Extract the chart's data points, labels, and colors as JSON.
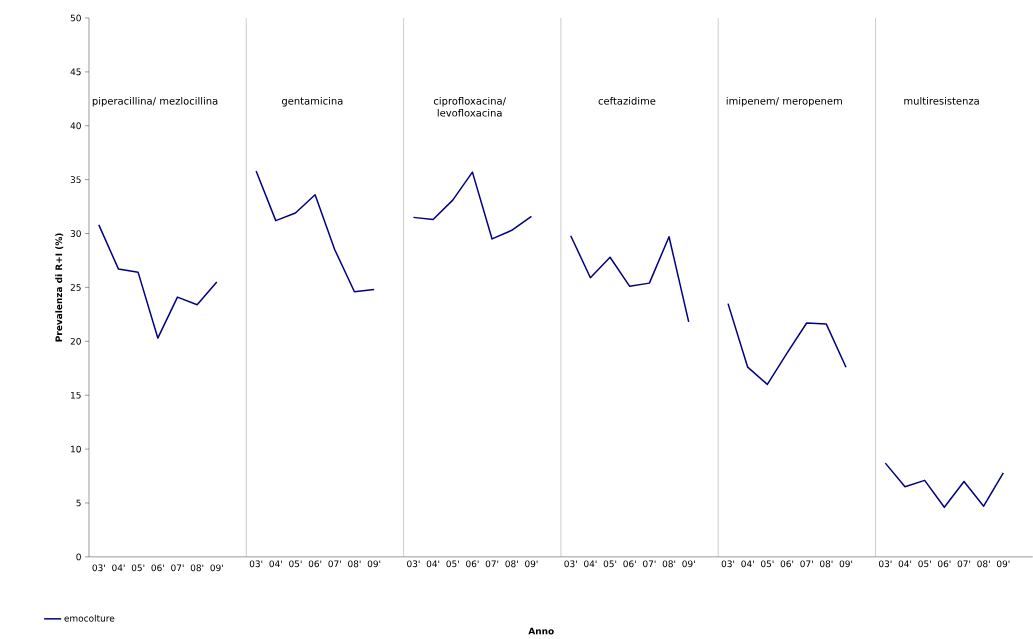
{
  "chart_data": [
    {
      "type": "line",
      "title": "piperacillina/ mezlocillina",
      "ylabel": "Prevalenza di R+I (%)",
      "categories": [
        "03'",
        "04'",
        "05'",
        "06'",
        "07'",
        "08'",
        "09'"
      ],
      "series": [
        {
          "name": "emocolture",
          "color": "#000080",
          "values": [
            30.8,
            26.7,
            26.4,
            20.3,
            24.1,
            23.4,
            25.5
          ]
        }
      ],
      "ylim": [
        0,
        50
      ],
      "yticks": [
        0,
        5,
        10,
        15,
        20,
        25,
        30,
        35,
        40,
        45,
        50
      ],
      "legend": "bottom left"
    },
    {
      "type": "line",
      "title": "gentamicina",
      "categories": [
        "03'",
        "04'",
        "05'",
        "06'",
        "07'",
        "08'",
        "09'"
      ],
      "series": [
        {
          "color": "#000080",
          "values": [
            35.8,
            31.2,
            31.9,
            33.6,
            28.5,
            24.6,
            24.8
          ]
        }
      ],
      "ylim": [
        0,
        50
      ],
      "yticks": [
        0,
        5,
        10,
        15,
        20,
        25,
        30,
        35,
        40,
        45,
        50
      ],
      "tick_labels": "x"
    },
    {
      "type": "line",
      "title": "ciprofloxacina/ levofloxacina",
      "xlabel": "Anno",
      "categories": [
        "03'",
        "04'",
        "05'",
        "06'",
        "07'",
        "08'",
        "09'"
      ],
      "series": [
        {
          "color": "#000080",
          "values": [
            31.5,
            31.3,
            33.1,
            35.7,
            29.5,
            30.3,
            31.6
          ]
        }
      ],
      "ylim": [
        0,
        50
      ],
      "yticks": [
        0,
        5,
        10,
        15,
        20,
        25,
        30,
        35,
        40,
        45,
        50
      ],
      "tick_labels": "x"
    },
    {
      "type": "line",
      "title": "ceftazidime",
      "categories": [
        "03'",
        "04'",
        "05'",
        "06'",
        "07'",
        "08'",
        "09'"
      ],
      "series": [
        {
          "color": "#000080",
          "values": [
            29.8,
            25.9,
            27.8,
            25.1,
            25.4,
            29.7,
            21.8
          ]
        }
      ],
      "ylim": [
        0,
        50
      ],
      "yticks": [
        0,
        5,
        10,
        15,
        20,
        25,
        30,
        35,
        40,
        45,
        50
      ],
      "tick_labels": "x"
    },
    {
      "type": "line",
      "title": "imipenem/ meropenem",
      "categories": [
        "03'",
        "04'",
        "05'",
        "06'",
        "07'",
        "08'",
        "09'"
      ],
      "series": [
        {
          "color": "#000080",
          "values": [
            23.5,
            17.6,
            16.0,
            18.9,
            21.7,
            21.6,
            17.6
          ]
        }
      ],
      "ylim": [
        0,
        50
      ],
      "yticks": [
        0,
        5,
        10,
        15,
        20,
        25,
        30,
        35,
        40,
        45,
        50
      ],
      "tick_labels": "x"
    },
    {
      "type": "line",
      "title": "multiresistenza",
      "categories": [
        "03'",
        "04'",
        "05'",
        "06'",
        "07'",
        "08'",
        "09'"
      ],
      "series": [
        {
          "color": "#000080",
          "values": [
            8.7,
            6.5,
            7.1,
            4.6,
            7.0,
            4.7,
            7.8
          ]
        }
      ],
      "ylim": [
        0,
        50
      ],
      "yticks": [
        0,
        5,
        10,
        15,
        20,
        25,
        30,
        35,
        40,
        45,
        50
      ],
      "tick_labels": "x"
    }
  ]
}
